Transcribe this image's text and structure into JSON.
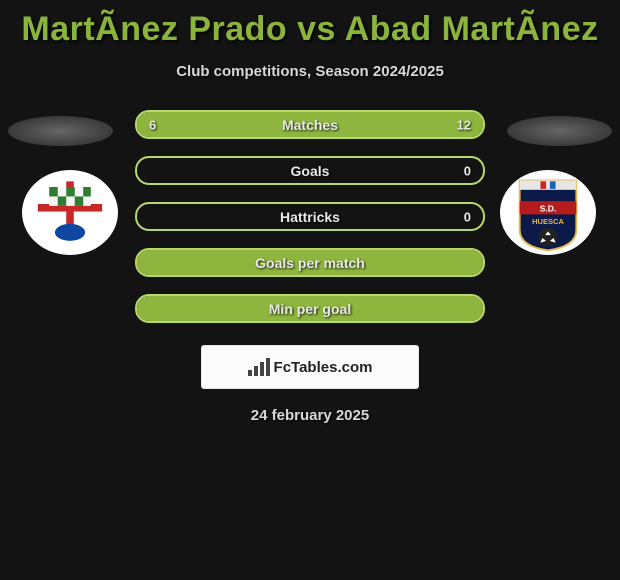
{
  "title": "MartÃ­nez Prado vs Abad MartÃ­nez",
  "subtitle": "Club competitions, Season 2024/2025",
  "date": "24 february 2025",
  "brand": "FcTables.com",
  "colors": {
    "accent": "#8bb43d",
    "bar_border": "#b8d86b",
    "bar_fill": "#8eb63e",
    "background": "#131313",
    "text_light": "#d8d8d8"
  },
  "stats": [
    {
      "label": "Matches",
      "left_text": "6",
      "right_text": "12",
      "left_pct": 33,
      "right_pct": 67
    },
    {
      "label": "Goals",
      "left_text": "",
      "right_text": "0",
      "left_pct": 0,
      "right_pct": 0
    },
    {
      "label": "Hattricks",
      "left_text": "",
      "right_text": "0",
      "left_pct": 0,
      "right_pct": 0
    },
    {
      "label": "Goals per match",
      "left_text": "",
      "right_text": "",
      "left_pct": 100,
      "right_pct": 0
    },
    {
      "label": "Min per goal",
      "left_text": "",
      "right_text": "",
      "left_pct": 100,
      "right_pct": 0
    }
  ],
  "crest_left": {
    "bg": "#ffffff",
    "cross": "#c62828",
    "check1": "#2e7d32",
    "check2": "#f5f5f5",
    "accent": "#0d47a1"
  },
  "crest_right": {
    "bg": "#0c1a4a",
    "stripe": "#b71c1c",
    "ball": "#222222",
    "gold": "#e6b84c",
    "text": "#ffffff"
  }
}
